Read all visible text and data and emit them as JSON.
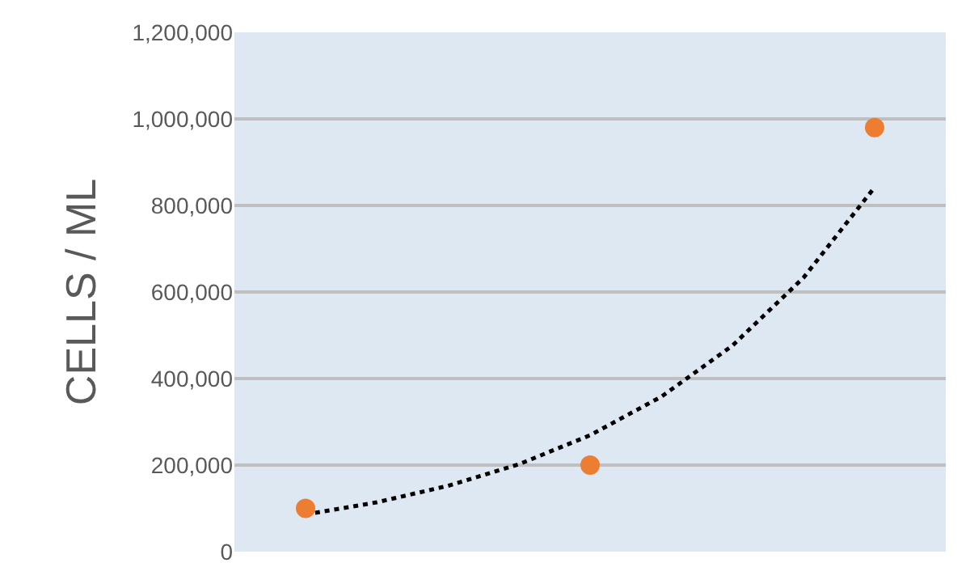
{
  "chart_data": {
    "type": "scatter",
    "ylabel": "CELLS / ML",
    "categories": [
      null,
      null,
      null,
      null,
      null,
      null,
      null,
      null,
      null
    ],
    "ylim": [
      0,
      1200000
    ],
    "yticks": [
      {
        "value": 0,
        "label": "0"
      },
      {
        "value": 200000,
        "label": "200,000"
      },
      {
        "value": 400000,
        "label": "400,000"
      },
      {
        "value": 600000,
        "label": "600,000"
      },
      {
        "value": 800000,
        "label": "800,000"
      },
      {
        "value": 1000000,
        "label": "1,000,000"
      },
      {
        "value": 1200000,
        "label": "1,200,000"
      }
    ],
    "grid": "y",
    "tick_labels": "y",
    "series": [
      {
        "type": "scatter",
        "color": "#ed7d31",
        "marker": "circle",
        "values": [
          100000,
          null,
          null,
          null,
          200000,
          null,
          null,
          null,
          980000
        ]
      },
      {
        "type": "line",
        "color": "#000000",
        "line_style": "dotted",
        "marker": "none",
        "values": [
          86000,
          114000,
          152000,
          202000,
          269000,
          358000,
          476000,
          633000,
          842000
        ]
      }
    ]
  }
}
